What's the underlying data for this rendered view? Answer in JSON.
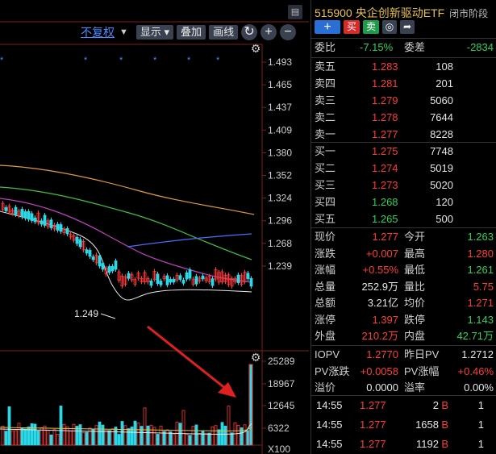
{
  "toolbar": {
    "adjust": "不复权",
    "display": "显示",
    "overlay": "叠加",
    "draw": "画线",
    "zoom_in": "+",
    "zoom_out": "−"
  },
  "price_axis": [
    "1.493",
    "1.465",
    "1.437",
    "1.409",
    "1.380",
    "1.352",
    "1.324",
    "1.296",
    "1.268",
    "1.239"
  ],
  "volume_axis": [
    "25289",
    "18967",
    "12645",
    "6322",
    "X100"
  ],
  "low_marker": "1.249",
  "header": {
    "code": "515900",
    "name": "央企创新驱动ETF",
    "status": "闭市阶段",
    "plus": "+",
    "buy": "买",
    "sell": "卖"
  },
  "ratio": {
    "weibi_label": "委比",
    "weibi_value": "-7.15%",
    "weicha_label": "委差",
    "weicha_value": "-2834"
  },
  "asks": [
    {
      "label": "卖五",
      "price": "1.283",
      "vol": "108"
    },
    {
      "label": "卖四",
      "price": "1.281",
      "vol": "201"
    },
    {
      "label": "卖三",
      "price": "1.279",
      "vol": "5060"
    },
    {
      "label": "卖二",
      "price": "1.278",
      "vol": "7644"
    },
    {
      "label": "卖一",
      "price": "1.277",
      "vol": "8228"
    }
  ],
  "bids": [
    {
      "label": "买一",
      "price": "1.275",
      "vol": "7748"
    },
    {
      "label": "买二",
      "price": "1.274",
      "vol": "5019"
    },
    {
      "label": "买三",
      "price": "1.273",
      "vol": "5020"
    },
    {
      "label": "买四",
      "price": "1.268",
      "vol": "120"
    },
    {
      "label": "买五",
      "price": "1.265",
      "vol": "500"
    }
  ],
  "quote": [
    {
      "l1": "现价",
      "v1": "1.277",
      "c1": "red",
      "l2": "今开",
      "v2": "1.263",
      "c2": "green"
    },
    {
      "l1": "涨跌",
      "v1": "+0.007",
      "c1": "red",
      "l2": "最高",
      "v2": "1.280",
      "c2": "red"
    },
    {
      "l1": "涨幅",
      "v1": "+0.55%",
      "c1": "red",
      "l2": "最低",
      "v2": "1.261",
      "c2": "green"
    },
    {
      "l1": "总量",
      "v1": "252.9万",
      "c1": "white",
      "l2": "量比",
      "v2": "5.75",
      "c2": "red"
    },
    {
      "l1": "总额",
      "v1": "3.21亿",
      "c1": "white",
      "l2": "均价",
      "v2": "1.271",
      "c2": "red"
    },
    {
      "l1": "涨停",
      "v1": "1.397",
      "c1": "red",
      "l2": "跌停",
      "v2": "1.143",
      "c2": "green"
    },
    {
      "l1": "外盘",
      "v1": "210.2万",
      "c1": "red",
      "l2": "内盘",
      "v2": "42.71万",
      "c2": "green"
    }
  ],
  "iopv": [
    {
      "l1": "IOPV",
      "v1": "1.2770",
      "c1": "red",
      "l2": "昨日PV",
      "v2": "1.2712",
      "c2": "white"
    },
    {
      "l1": "PV涨跌",
      "v1": "+0.0058",
      "c1": "red",
      "l2": "PV涨幅",
      "v2": "+0.46%",
      "c2": "red"
    },
    {
      "l1": "溢价",
      "v1": "0.0000",
      "c1": "white",
      "l2": "溢率",
      "v2": "0.00%",
      "c2": "white"
    }
  ],
  "ticks": [
    {
      "time": "14:55",
      "price": "1.277",
      "vol": "2",
      "side": "B",
      "count": "1"
    },
    {
      "time": "14:55",
      "price": "1.277",
      "vol": "1658",
      "side": "B",
      "count": "1"
    },
    {
      "time": "14:55",
      "price": "1.277",
      "vol": "1192",
      "side": "B",
      "count": "1"
    }
  ]
}
